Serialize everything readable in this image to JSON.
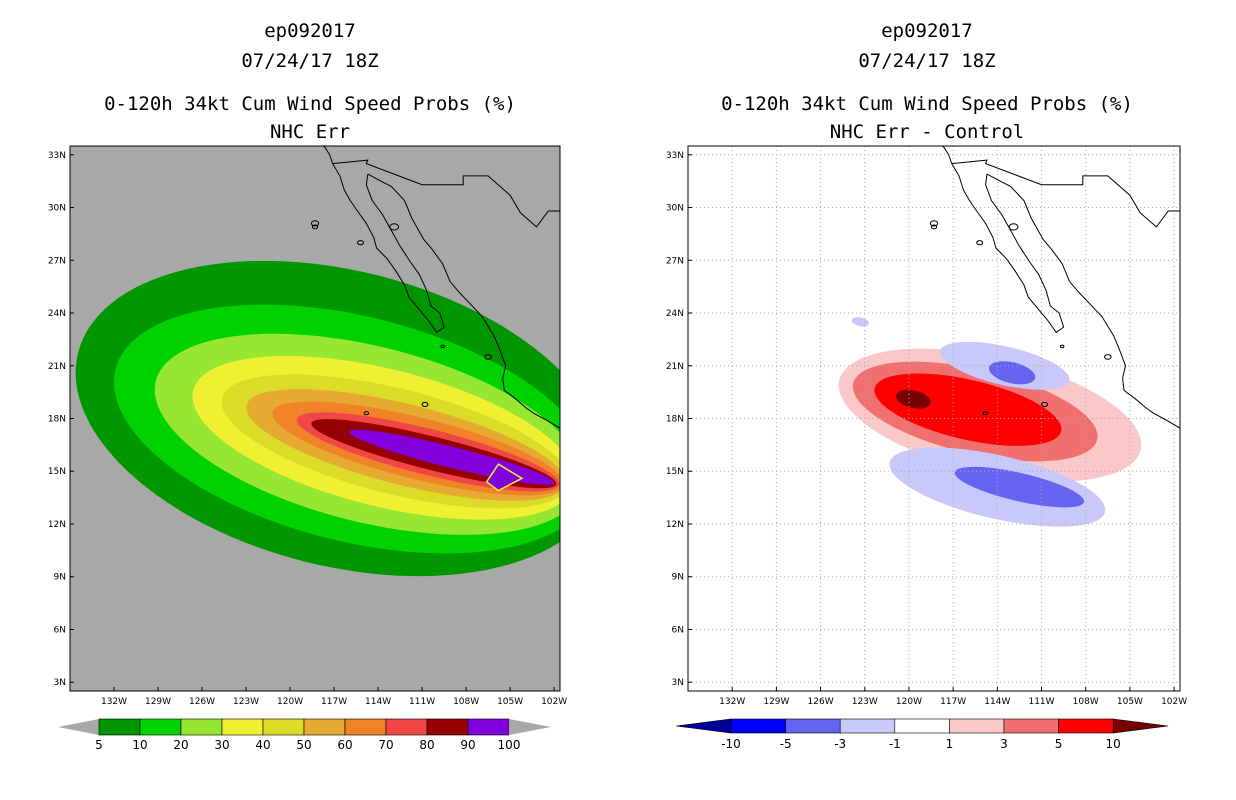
{
  "colors": {
    "land": "#000000",
    "background_left": "#a8a8a8",
    "prob": [
      "#009600",
      "#00d200",
      "#96e632",
      "#f0f032",
      "#dcdc28",
      "#e6aa32",
      "#f08228",
      "#f04646",
      "#960000",
      "#8200dc"
    ],
    "diff": [
      "#000096",
      "#0000ff",
      "#6464f0",
      "#c8c8fa",
      "#ffffff",
      "#fac8c8",
      "#f07070",
      "#ff0000",
      "#780000"
    ],
    "grid": "#aaaaaa"
  },
  "chart_data": [
    {
      "type": "contour-map",
      "id": "left",
      "header": [
        "ep092017",
        "07/24/17 18Z"
      ],
      "title": "0-120h 34kt Cum Wind Speed Probs (%)",
      "subtitle": "NHC Err",
      "xlim": [
        -135,
        -101.6
      ],
      "ylim": [
        2.5,
        33.5
      ],
      "x_ticks": [
        -132,
        -129,
        -126,
        -123,
        -120,
        -117,
        -114,
        -111,
        -108,
        -105,
        -102
      ],
      "x_tick_labels": [
        "132W",
        "129W",
        "126W",
        "123W",
        "120W",
        "117W",
        "114W",
        "111W",
        "108W",
        "105W",
        "102W"
      ],
      "y_ticks": [
        3,
        6,
        9,
        12,
        15,
        18,
        21,
        24,
        27,
        30,
        33
      ],
      "y_tick_labels": [
        "3N",
        "6N",
        "9N",
        "12N",
        "15N",
        "18N",
        "21N",
        "24N",
        "27N",
        "30N",
        "33N"
      ],
      "grid": false,
      "colorbar_labels": [
        "5",
        "10",
        "20",
        "30",
        "40",
        "50",
        "60",
        "70",
        "80",
        "90",
        "100"
      ],
      "contours": [
        {
          "level": 5,
          "cx": -116.5,
          "cy": 18.0,
          "rx": 18.5,
          "ry": 8.4
        },
        {
          "level": 10,
          "cx": -115.6,
          "cy": 17.4,
          "rx": 16.8,
          "ry": 6.4
        },
        {
          "level": 20,
          "cx": -114.6,
          "cy": 17.1,
          "rx": 15.0,
          "ry": 5.0
        },
        {
          "level": 30,
          "cx": -113.6,
          "cy": 16.9,
          "rx": 13.4,
          "ry": 3.9
        },
        {
          "level": 40,
          "cx": -112.8,
          "cy": 16.7,
          "rx": 12.2,
          "ry": 3.0
        },
        {
          "level": 50,
          "cx": -112.1,
          "cy": 16.5,
          "rx": 11.2,
          "ry": 2.3
        },
        {
          "level": 60,
          "cx": -111.3,
          "cy": 16.3,
          "rx": 10.2,
          "ry": 1.75
        },
        {
          "level": 70,
          "cx": -110.6,
          "cy": 16.1,
          "rx": 9.2,
          "ry": 1.3
        },
        {
          "level": 80,
          "cx": -110.2,
          "cy": 16.0,
          "rx": 8.6,
          "ry": 0.95
        },
        {
          "level": 90,
          "cx": -109.0,
          "cy": 15.8,
          "rx": 7.2,
          "ry": 0.6
        }
      ]
    },
    {
      "type": "contour-map",
      "id": "right",
      "header": [
        "ep092017",
        "07/24/17 18Z"
      ],
      "title": "0-120h 34kt Cum Wind Speed Probs (%)",
      "subtitle": "NHC Err - Control",
      "xlim": [
        -135,
        -101.6
      ],
      "ylim": [
        2.5,
        33.5
      ],
      "x_ticks": [
        -132,
        -129,
        -126,
        -123,
        -120,
        -117,
        -114,
        -111,
        -108,
        -105,
        -102
      ],
      "x_tick_labels": [
        "132W",
        "129W",
        "126W",
        "123W",
        "120W",
        "117W",
        "114W",
        "111W",
        "108W",
        "105W",
        "102W"
      ],
      "y_ticks": [
        3,
        6,
        9,
        12,
        15,
        18,
        21,
        24,
        27,
        30,
        33
      ],
      "y_tick_labels": [
        "3N",
        "6N",
        "9N",
        "12N",
        "15N",
        "18N",
        "21N",
        "24N",
        "27N",
        "30N",
        "33N"
      ],
      "grid": true,
      "colorbar_labels": [
        "-10",
        "-5",
        "-3",
        "-1",
        "1",
        "3",
        "5",
        "10"
      ],
      "contours": [
        {
          "level": 1,
          "cx": -114.5,
          "cy": 18.2,
          "rx": 10.5,
          "ry": 3.3
        },
        {
          "level": 3,
          "cx": -115.5,
          "cy": 18.4,
          "rx": 8.5,
          "ry": 2.4
        },
        {
          "level": 5,
          "cx": -116.0,
          "cy": 18.5,
          "rx": 6.5,
          "ry": 1.7
        },
        {
          "level": 10,
          "cx": -119.7,
          "cy": 19.1,
          "rx": 1.2,
          "ry": 0.5
        },
        {
          "level": -1,
          "cx": -114.0,
          "cy": 14.1,
          "rx": 7.5,
          "ry": 1.8
        },
        {
          "level": -3,
          "cx": -112.5,
          "cy": 14.1,
          "rx": 4.5,
          "ry": 0.8
        },
        {
          "level": -1,
          "cx": -113.5,
          "cy": 21.0,
          "rx": 4.5,
          "ry": 1.1
        },
        {
          "level": -3,
          "cx": -113.0,
          "cy": 20.6,
          "rx": 1.6,
          "ry": 0.6
        },
        {
          "level": -1,
          "cx": -123.3,
          "cy": 23.5,
          "rx": 0.6,
          "ry": 0.25
        }
      ]
    }
  ]
}
